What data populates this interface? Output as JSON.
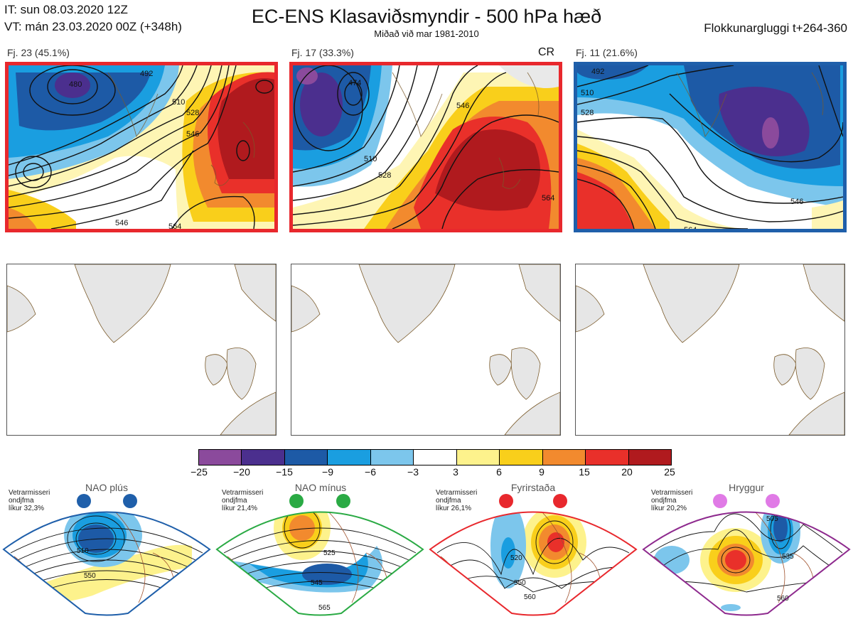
{
  "header": {
    "it_line": "IT: sun 08.03.2020 12Z",
    "vt_line": "VT: mán 23.03.2020 00Z  (+348h)",
    "title": "EC-ENS Klasaviðsmyndir - 500 hPa hæð",
    "subtitle": "Miðað við mar 1981-2010",
    "window": "Flokkunargluggi t+264-360"
  },
  "clusters": [
    {
      "label": "Fj. 23 (45.1%)",
      "border_color": "#e8282d",
      "contours": [
        "480",
        "492",
        "510",
        "528",
        "546",
        "564",
        "546"
      ]
    },
    {
      "label": "Fj. 17 (33.3%)",
      "border_color": "#e8282d",
      "tag": "CR",
      "contours": [
        "474",
        "510",
        "528",
        "546",
        "564"
      ]
    },
    {
      "label": "Fj. 11 (21.6%)",
      "border_color": "#1f5faa",
      "contours": [
        "492",
        "510",
        "528",
        "546",
        "564"
      ]
    }
  ],
  "colorbar": {
    "ticks": [
      "−25",
      "−20",
      "−15",
      "−9",
      "−6",
      "−3",
      "3",
      "6",
      "9",
      "15",
      "20",
      "25"
    ],
    "colors": [
      "#8b4a9c",
      "#4b2f8e",
      "#1d5aa6",
      "#1a9ee0",
      "#7cc6ec",
      "#ffffff",
      "#fdf28c",
      "#f9cf1b",
      "#f28a2e",
      "#e9302a",
      "#b01a1e"
    ]
  },
  "regimes": [
    {
      "name": "NAO plús",
      "note": [
        "Vetrarmisseri",
        "ondjfma",
        "líkur 32,3%"
      ],
      "color": "#1f5faa",
      "contour_labels": [
        "510",
        "550"
      ]
    },
    {
      "name": "NAO mínus",
      "note": [
        "Vetrarmisseri",
        "ondjfma",
        "líkur 21,4%"
      ],
      "color": "#2aaa44",
      "contour_labels": [
        "525",
        "545",
        "565"
      ]
    },
    {
      "name": "Fyrirstaða",
      "note": [
        "Vetrarmisseri",
        "ondjfma",
        "líkur 26,1%"
      ],
      "color": "#e8282d",
      "contour_labels": [
        "520",
        "550",
        "560"
      ]
    },
    {
      "name": "Hryggur",
      "note": [
        "Vetrarmisseri",
        "ondjfma",
        "líkur 20,2%"
      ],
      "color": "#8e2a8e",
      "contour_labels": [
        "505",
        "535",
        "560"
      ]
    }
  ]
}
